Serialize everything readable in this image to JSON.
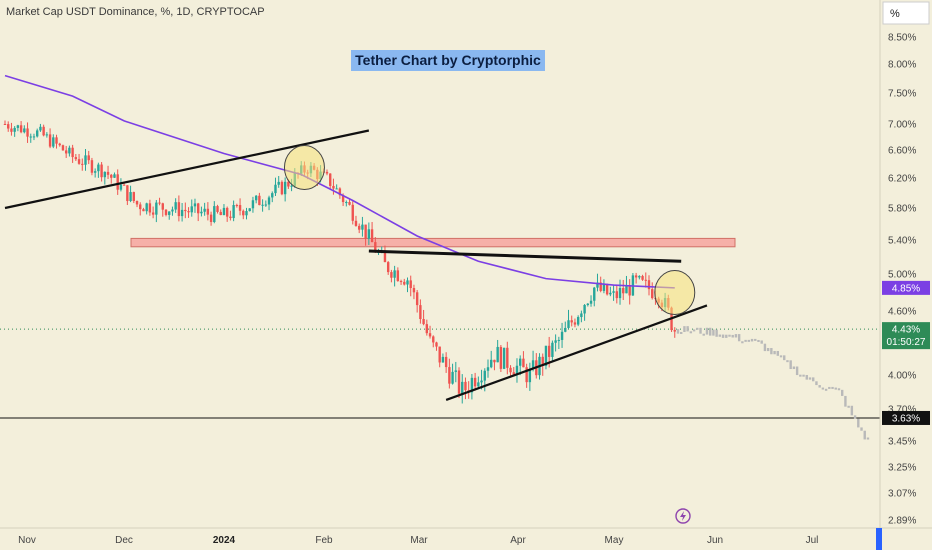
{
  "header": {
    "symbol": "Market Cap USDT Dominance, %, 1D, CRYPTOCAP"
  },
  "title": "Tether Chart by Cryptorphic",
  "price_axis": {
    "unit": "%",
    "ticks": [
      "8.50%",
      "8.00%",
      "7.50%",
      "7.00%",
      "6.60%",
      "6.20%",
      "5.80%",
      "5.40%",
      "5.00%",
      "4.60%",
      "4.00%",
      "3.70%",
      "3.45%",
      "3.25%",
      "3.07%",
      "2.89%"
    ]
  },
  "time_axis": {
    "ticks": [
      "Nov",
      "Dec",
      "2024",
      "Feb",
      "Mar",
      "Apr",
      "May",
      "Jun",
      "Jul"
    ]
  },
  "tags": {
    "ma": "4.85%",
    "last": "4.43%",
    "countdown": "01:50:27",
    "level": "3.63%"
  },
  "colors": {
    "background": "#f3efdb",
    "up_candle": "#26a69a",
    "down_candle": "#ef5350",
    "moving_average": "#7b3fe4",
    "resistance_zone": "#f6b0a8",
    "highlight_circle": "#f5e27a",
    "projection": "#b9b9b9",
    "ma_tag": "#7b3fe4",
    "last_tag": "#2e8b57",
    "level_tag": "#111111"
  },
  "chart_data": {
    "type": "candlestick",
    "y_range": [
      2.89,
      8.6
    ],
    "x_range": [
      "2023-10-25",
      "2024-07-20"
    ],
    "moving_average": [
      {
        "date": "2023-10-25",
        "value": 7.8
      },
      {
        "date": "2023-11-15",
        "value": 7.45
      },
      {
        "date": "2023-12-01",
        "value": 7.05
      },
      {
        "date": "2024-01-01",
        "value": 6.55
      },
      {
        "date": "2024-01-25",
        "value": 6.25
      },
      {
        "date": "2024-02-10",
        "value": 5.9
      },
      {
        "date": "2024-03-01",
        "value": 5.45
      },
      {
        "date": "2024-03-20",
        "value": 5.15
      },
      {
        "date": "2024-04-10",
        "value": 4.95
      },
      {
        "date": "2024-05-01",
        "value": 4.88
      },
      {
        "date": "2024-05-20",
        "value": 4.85
      }
    ],
    "close_path": [
      {
        "date": "2023-10-25",
        "value": 7.0
      },
      {
        "date": "2023-11-05",
        "value": 6.85
      },
      {
        "date": "2023-11-15",
        "value": 6.5
      },
      {
        "date": "2023-11-25",
        "value": 6.3
      },
      {
        "date": "2023-12-05",
        "value": 5.85
      },
      {
        "date": "2023-12-15",
        "value": 5.8
      },
      {
        "date": "2024-01-01",
        "value": 5.7
      },
      {
        "date": "2024-01-10",
        "value": 5.85
      },
      {
        "date": "2024-01-20",
        "value": 6.1
      },
      {
        "date": "2024-01-27",
        "value": 6.35
      },
      {
        "date": "2024-02-03",
        "value": 6.15
      },
      {
        "date": "2024-02-10",
        "value": 5.75
      },
      {
        "date": "2024-02-20",
        "value": 5.1
      },
      {
        "date": "2024-02-27",
        "value": 4.95
      },
      {
        "date": "2024-03-05",
        "value": 4.3
      },
      {
        "date": "2024-03-15",
        "value": 3.85
      },
      {
        "date": "2024-03-25",
        "value": 4.2
      },
      {
        "date": "2024-04-05",
        "value": 4.0
      },
      {
        "date": "2024-04-15",
        "value": 4.35
      },
      {
        "date": "2024-04-25",
        "value": 4.85
      },
      {
        "date": "2024-05-01",
        "value": 4.75
      },
      {
        "date": "2024-05-08",
        "value": 4.9
      },
      {
        "date": "2024-05-15",
        "value": 4.8
      },
      {
        "date": "2024-05-20",
        "value": 4.43
      }
    ],
    "projection": [
      {
        "date": "2024-05-20",
        "value": 4.43
      },
      {
        "date": "2024-06-01",
        "value": 4.4
      },
      {
        "date": "2024-06-15",
        "value": 4.3
      },
      {
        "date": "2024-07-01",
        "value": 3.95
      },
      {
        "date": "2024-07-10",
        "value": 3.85
      },
      {
        "date": "2024-07-15",
        "value": 3.6
      },
      {
        "date": "2024-07-19",
        "value": 3.45
      }
    ],
    "resistance_zone": [
      5.32,
      5.42
    ],
    "horizontal_level": 3.63,
    "trendlines": [
      {
        "name": "upper-rising",
        "from": {
          "date": "2023-10-25",
          "value": 5.8
        },
        "to": {
          "date": "2024-02-15",
          "value": 6.9
        }
      },
      {
        "name": "flat-top",
        "from": {
          "date": "2024-02-15",
          "value": 5.27
        },
        "to": {
          "date": "2024-05-22",
          "value": 5.15
        }
      },
      {
        "name": "rising-support",
        "from": {
          "date": "2024-03-10",
          "value": 3.78
        },
        "to": {
          "date": "2024-05-30",
          "value": 4.66
        }
      }
    ],
    "highlights": [
      {
        "date": "2024-01-26",
        "value": 6.35
      },
      {
        "date": "2024-05-20",
        "value": 4.8
      }
    ]
  }
}
